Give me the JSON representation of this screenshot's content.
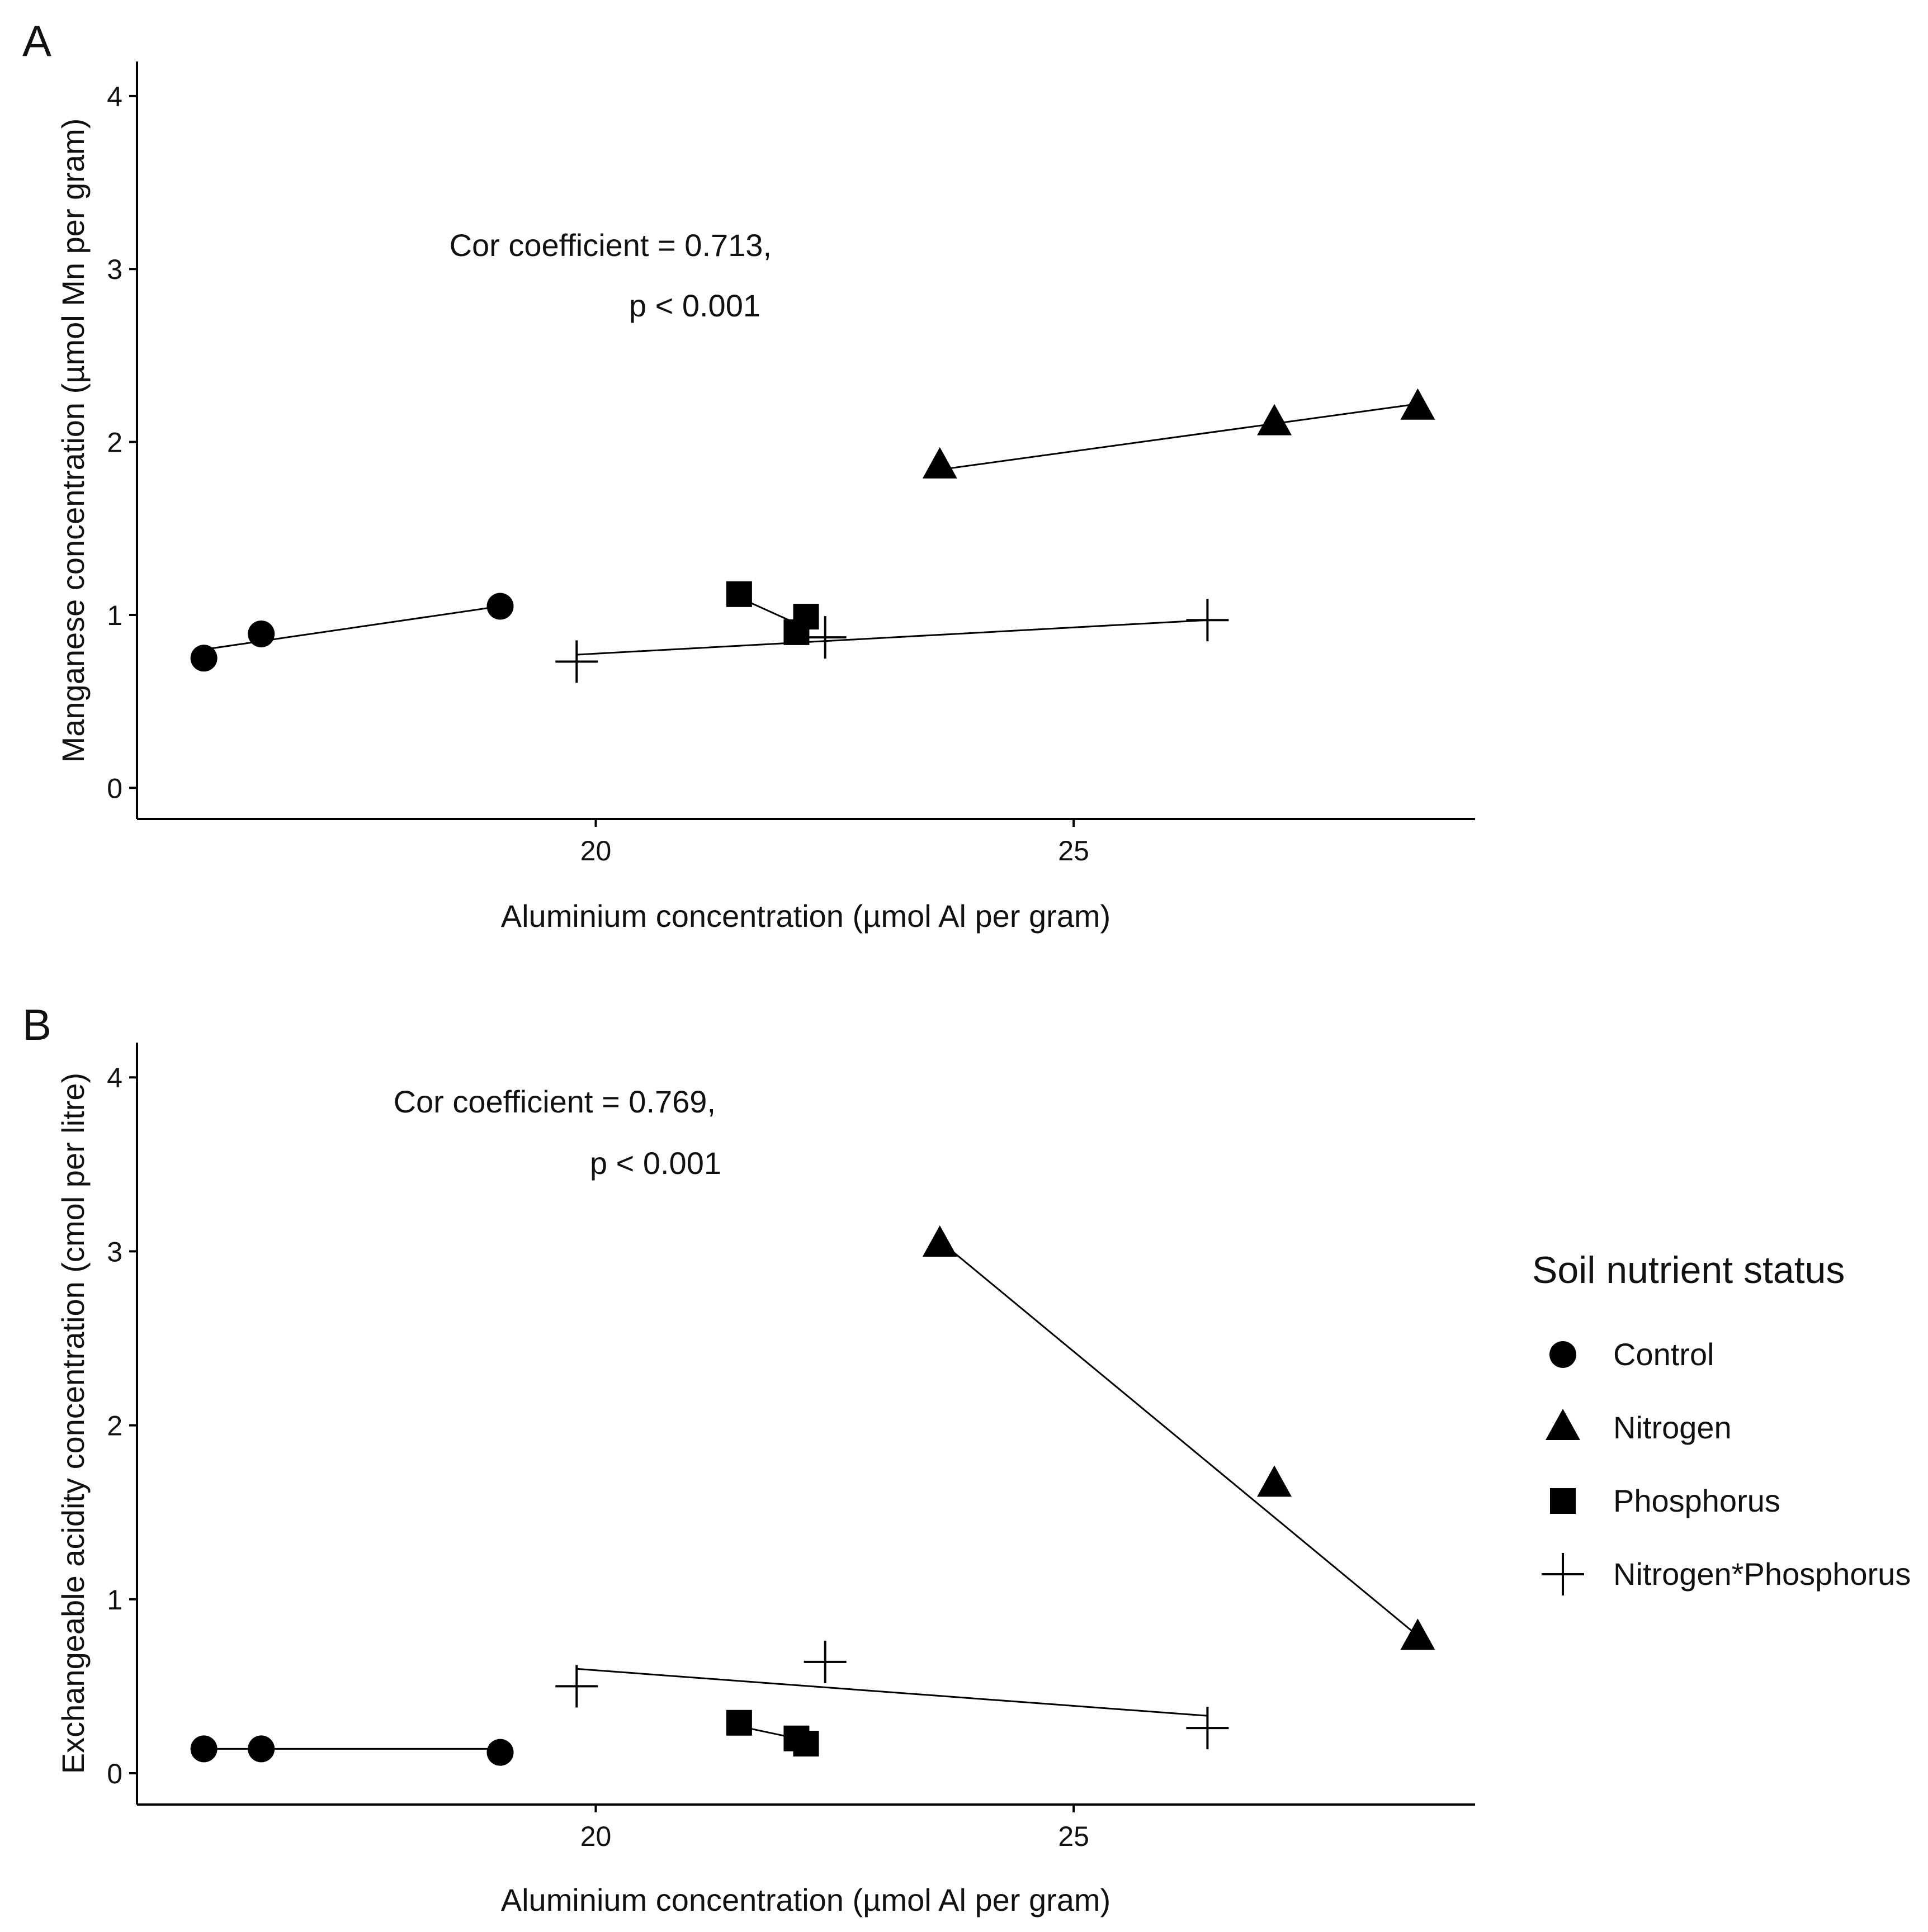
{
  "chart_data": [
    {
      "type": "scatter",
      "panel": "A",
      "title": "",
      "xlabel": "Aluminium concentration (µmol Al per gram)",
      "ylabel": "Manganese concentration (µmol Mn per gram)",
      "xlim": [
        15.2,
        29.2
      ],
      "ylim": [
        -0.18,
        4.2
      ],
      "xticks": [
        20,
        25
      ],
      "yticks": [
        0,
        1,
        2,
        3,
        4
      ],
      "annotation": [
        "Cor coefficient = 0.713,",
        "p < 0.001"
      ],
      "grid": false,
      "series": [
        {
          "name": "Control",
          "shape": "circle",
          "x": [
            15.9,
            16.5,
            19.0
          ],
          "y": [
            0.75,
            0.89,
            1.05
          ],
          "fit": [
            [
              15.9,
              0.8
            ],
            [
              19.0,
              1.05
            ]
          ]
        },
        {
          "name": "Nitrogen",
          "shape": "triangle",
          "x": [
            23.6,
            27.1,
            28.6
          ],
          "y": [
            1.86,
            2.11,
            2.2
          ],
          "fit": [
            [
              23.6,
              1.84
            ],
            [
              28.6,
              2.22
            ]
          ]
        },
        {
          "name": "Phosphorus",
          "shape": "square",
          "x": [
            21.5,
            22.1,
            22.2
          ],
          "y": [
            1.12,
            0.9,
            0.99
          ],
          "fit": [
            [
              21.5,
              1.1
            ],
            [
              22.1,
              0.95
            ]
          ]
        },
        {
          "name": "Nitrogen*Phosphorus",
          "shape": "cross",
          "x": [
            19.8,
            22.4,
            26.4
          ],
          "y": [
            0.73,
            0.87,
            0.97
          ],
          "fit": [
            [
              19.8,
              0.77
            ],
            [
              26.4,
              0.97
            ]
          ]
        }
      ]
    },
    {
      "type": "scatter",
      "panel": "B",
      "title": "",
      "xlabel": "Aluminium concentration (µmol Al per gram)",
      "ylabel": "Exchangeable acidity concentration (cmol per litre)",
      "xlim": [
        15.2,
        29.2
      ],
      "ylim": [
        -0.18,
        4.2
      ],
      "xticks": [
        20,
        25
      ],
      "yticks": [
        0,
        1,
        2,
        3,
        4
      ],
      "annotation": [
        "Cor coefficient = 0.769,",
        "p < 0.001"
      ],
      "grid": false,
      "series": [
        {
          "name": "Control",
          "shape": "circle",
          "x": [
            15.9,
            16.5,
            19.0
          ],
          "y": [
            0.14,
            0.14,
            0.12
          ],
          "fit": [
            [
              15.9,
              0.14
            ],
            [
              19.0,
              0.14
            ]
          ]
        },
        {
          "name": "Nitrogen",
          "shape": "triangle",
          "x": [
            23.6,
            27.1,
            28.6
          ],
          "y": [
            3.04,
            1.66,
            0.78
          ],
          "fit": [
            [
              23.6,
              3.06
            ],
            [
              28.6,
              0.79
            ]
          ]
        },
        {
          "name": "Phosphorus",
          "shape": "square",
          "x": [
            21.5,
            22.1,
            22.2
          ],
          "y": [
            0.29,
            0.2,
            0.17
          ],
          "fit": [
            [
              21.5,
              0.27
            ],
            [
              22.1,
              0.2
            ]
          ]
        },
        {
          "name": "Nitrogen*Phosphorus",
          "shape": "cross",
          "x": [
            19.8,
            22.4,
            26.4
          ],
          "y": [
            0.5,
            0.64,
            0.26
          ],
          "fit": [
            [
              19.8,
              0.6
            ],
            [
              26.4,
              0.33
            ]
          ]
        }
      ]
    }
  ],
  "legend": {
    "title": "Soil  nutrient status",
    "placement": "right",
    "items": [
      {
        "label": "Control",
        "shape": "circle"
      },
      {
        "label": "Nitrogen",
        "shape": "triangle"
      },
      {
        "label": "Phosphorus",
        "shape": "square"
      },
      {
        "label": "Nitrogen*Phosphorus",
        "shape": "cross"
      }
    ]
  },
  "colors": {
    "ink": "#000000",
    "text": "#111111",
    "background": "#ffffff"
  }
}
